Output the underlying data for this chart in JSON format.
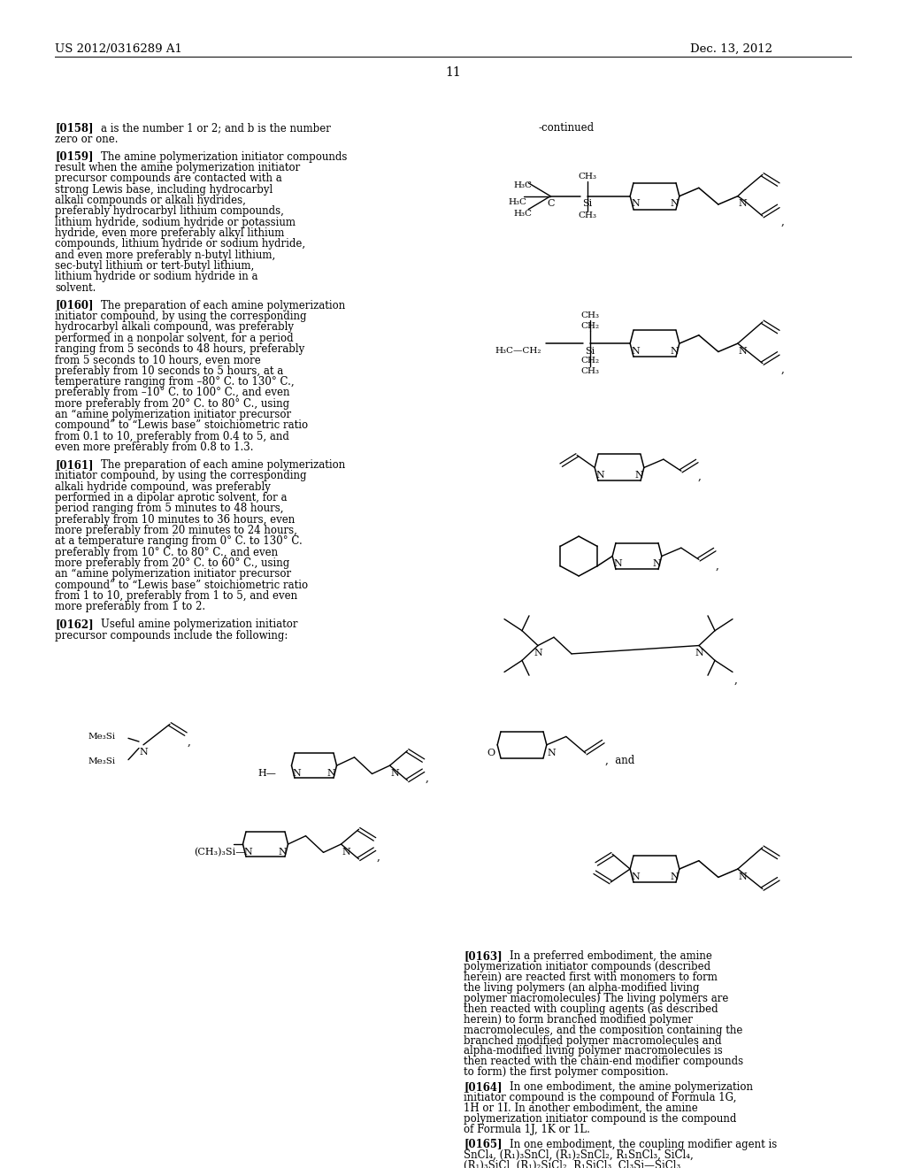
{
  "page_header_left": "US 2012/0316289 A1",
  "page_header_right": "Dec. 13, 2012",
  "page_number": "11",
  "background_color": "#ffffff"
}
